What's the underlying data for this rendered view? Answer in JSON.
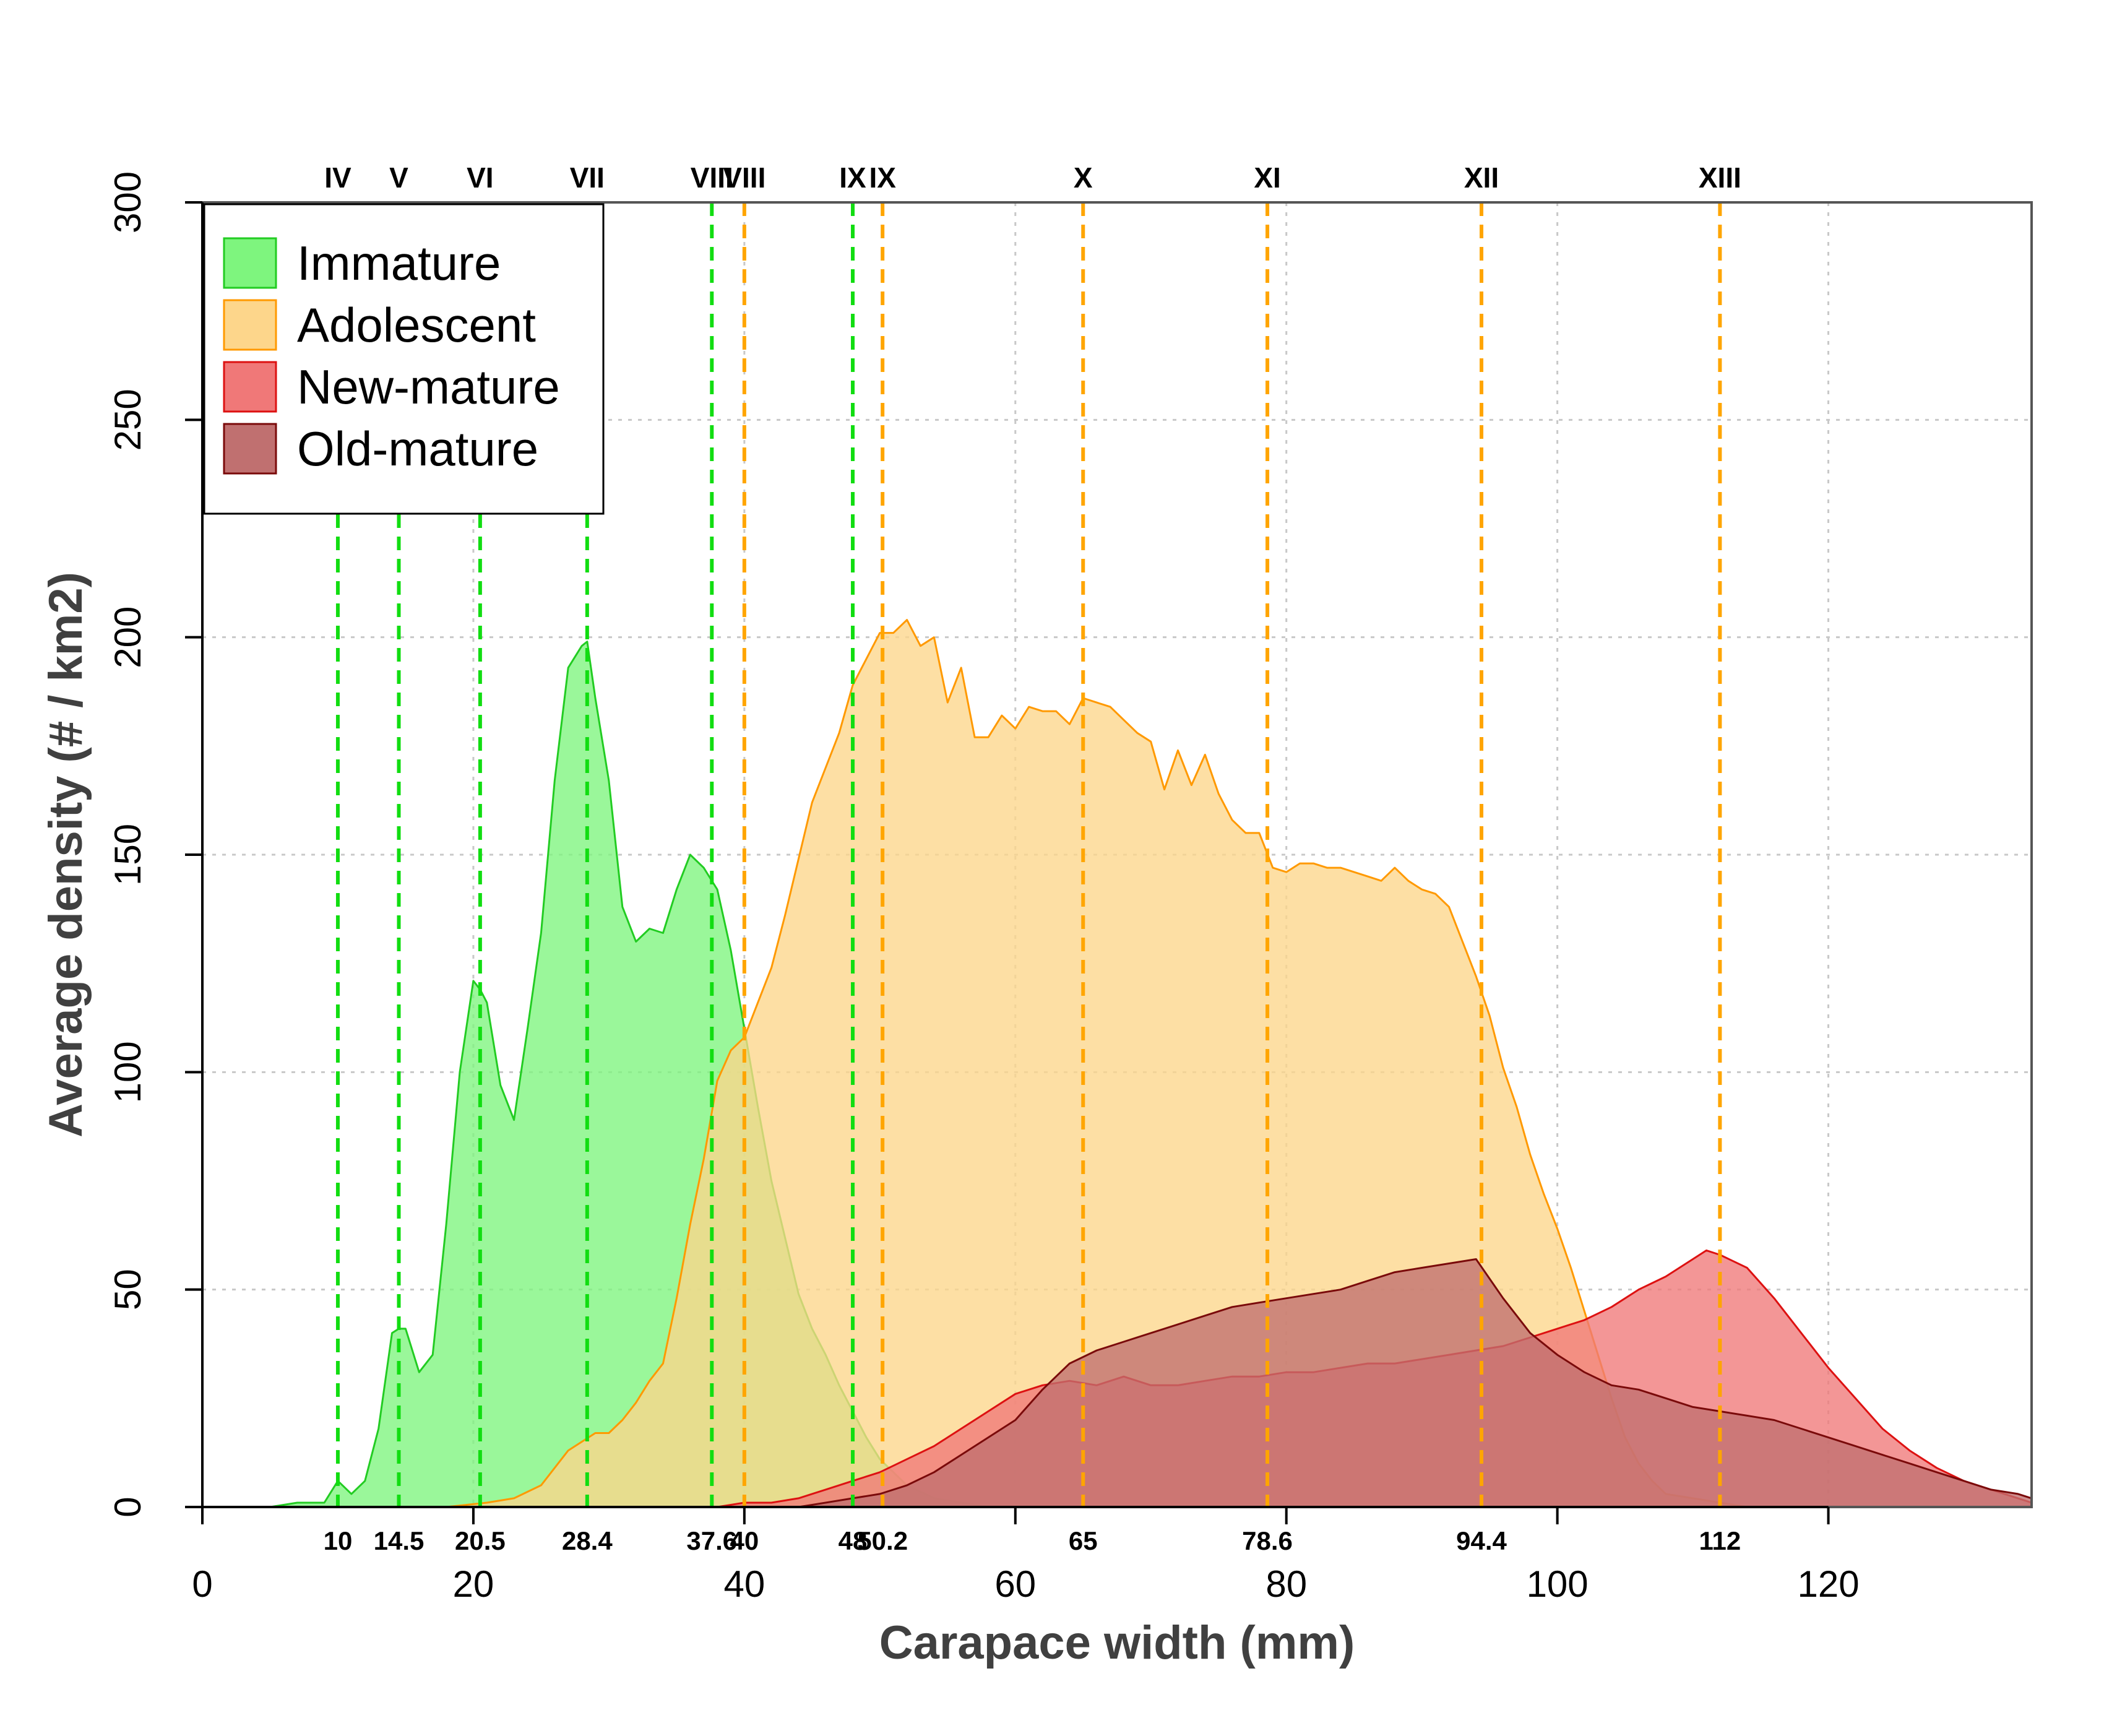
{
  "chart_data": {
    "type": "area",
    "title": "",
    "xlabel": "Carapace width (mm)",
    "ylabel": "Average density (# / km2)",
    "xlim": [
      0,
      135
    ],
    "ylim": [
      0,
      300
    ],
    "x_ticks": [
      0,
      20,
      40,
      60,
      80,
      100,
      120
    ],
    "y_ticks": [
      0,
      50,
      100,
      150,
      200,
      250,
      300
    ],
    "grid": true,
    "legend_position": "top-left",
    "legend": [
      "Immature",
      "Adolescent",
      "New-mature",
      "Old-mature"
    ],
    "instars": [
      {
        "label": "IV",
        "value": 10,
        "value_label": "10",
        "stage": "Immature"
      },
      {
        "label": "V",
        "value": 14.5,
        "value_label": "14.5",
        "stage": "Immature"
      },
      {
        "label": "VI",
        "value": 20.5,
        "value_label": "20.5",
        "stage": "Immature"
      },
      {
        "label": "VII",
        "value": 28.4,
        "value_label": "28.4",
        "stage": "Immature"
      },
      {
        "label": "VIII",
        "value": 37.6,
        "value_label": "37.6",
        "stage": "Immature"
      },
      {
        "label": "VIII",
        "value": 40,
        "value_label": "40",
        "stage": "Adolescent"
      },
      {
        "label": "IX",
        "value": 48,
        "value_label": "48",
        "stage": "Immature"
      },
      {
        "label": "IX",
        "value": 50.2,
        "value_label": "50.2",
        "stage": "Adolescent"
      },
      {
        "label": "X",
        "value": 65,
        "value_label": "65",
        "stage": "Adolescent"
      },
      {
        "label": "XI",
        "value": 78.6,
        "value_label": "78.6",
        "stage": "Adolescent"
      },
      {
        "label": "XII",
        "value": 94.4,
        "value_label": "94.4",
        "stage": "Adolescent"
      },
      {
        "label": "XIII",
        "value": 112,
        "value_label": "112",
        "stage": "Adolescent"
      }
    ],
    "series": [
      {
        "name": "Immature",
        "fill": "#7ef57e",
        "stroke": "#22cc22",
        "x": [
          3,
          5,
          7,
          9,
          10,
          11,
          12,
          13,
          14,
          14.5,
          15,
          16,
          17,
          18,
          19,
          20,
          20.5,
          21,
          22,
          23,
          24,
          25,
          26,
          27,
          28,
          28.4,
          29,
          30,
          31,
          32,
          33,
          34,
          35,
          36,
          37,
          37.6,
          38,
          39,
          40,
          41,
          42,
          43,
          44,
          45,
          46,
          47,
          48,
          49,
          50,
          52,
          54,
          56,
          58
        ],
        "values": [
          0,
          0,
          1,
          1,
          6,
          3,
          6,
          18,
          40,
          41,
          41,
          31,
          35,
          65,
          100,
          121,
          119,
          116,
          97,
          89,
          110,
          132,
          167,
          193,
          198,
          199,
          186,
          167,
          138,
          130,
          133,
          132,
          142,
          150,
          147,
          144,
          142,
          128,
          110,
          92,
          75,
          62,
          49,
          41,
          35,
          28,
          22,
          16,
          11,
          5,
          2,
          1,
          0
        ]
      },
      {
        "name": "Adolescent",
        "fill": "#fdd68b",
        "stroke": "#ff9900",
        "x": [
          18,
          21,
          23,
          25,
          26,
          27,
          28,
          29,
          30,
          31,
          32,
          33,
          34,
          35,
          36,
          37,
          38,
          39,
          40,
          41,
          42,
          43,
          44,
          45,
          46,
          47,
          48,
          49,
          50,
          51,
          52,
          53,
          54,
          55,
          56,
          57,
          58,
          59,
          60,
          61,
          62,
          63,
          64,
          65,
          66,
          67,
          68,
          69,
          70,
          71,
          72,
          73,
          74,
          75,
          76,
          77,
          78,
          79,
          80,
          81,
          82,
          83,
          84,
          85,
          86,
          87,
          88,
          89,
          90,
          91,
          92,
          93,
          94,
          95,
          96,
          97,
          98,
          99,
          100,
          101,
          102,
          103,
          104,
          105,
          106,
          107,
          108,
          110,
          112,
          114,
          116,
          118
        ],
        "values": [
          0,
          1,
          2,
          5,
          9,
          13,
          15,
          17,
          17,
          20,
          24,
          29,
          33,
          48,
          65,
          80,
          98,
          105,
          108,
          116,
          124,
          136,
          149,
          162,
          170,
          178,
          189,
          195,
          201,
          201,
          204,
          198,
          200,
          185,
          193,
          177,
          177,
          182,
          179,
          184,
          183,
          183,
          180,
          186,
          185,
          184,
          181,
          178,
          176,
          165,
          174,
          166,
          173,
          164,
          158,
          155,
          155,
          147,
          146,
          148,
          148,
          147,
          147,
          146,
          145,
          144,
          147,
          144,
          142,
          141,
          138,
          130,
          122,
          113,
          101,
          92,
          81,
          72,
          64,
          55,
          45,
          35,
          25,
          16,
          10,
          6,
          3,
          2,
          1,
          0,
          0,
          0
        ]
      },
      {
        "name": "New-mature",
        "fill": "#f07878",
        "stroke": "#dd1111",
        "x": [
          38,
          40,
          42,
          44,
          46,
          48,
          50,
          52,
          54,
          56,
          58,
          60,
          62,
          64,
          66,
          68,
          70,
          72,
          74,
          76,
          78,
          80,
          82,
          84,
          86,
          88,
          90,
          92,
          94,
          96,
          98,
          100,
          102,
          104,
          106,
          108,
          110,
          111,
          112,
          114,
          116,
          118,
          120,
          122,
          124,
          126,
          128,
          130,
          132,
          134,
          135
        ],
        "values": [
          0,
          1,
          1,
          2,
          4,
          6,
          8,
          11,
          14,
          18,
          22,
          26,
          28,
          29,
          28,
          30,
          28,
          28,
          29,
          30,
          30,
          31,
          31,
          32,
          33,
          33,
          34,
          35,
          36,
          37,
          39,
          41,
          43,
          46,
          50,
          53,
          57,
          59,
          58,
          55,
          48,
          40,
          32,
          25,
          18,
          13,
          9,
          6,
          4,
          2,
          1
        ]
      },
      {
        "name": "Old-mature",
        "fill": "#c07070",
        "stroke": "#7a0a0a",
        "x": [
          44,
          46,
          48,
          50,
          52,
          54,
          56,
          58,
          60,
          62,
          64,
          66,
          68,
          70,
          72,
          74,
          76,
          78,
          80,
          82,
          84,
          86,
          88,
          90,
          92,
          94,
          96,
          98,
          100,
          102,
          104,
          106,
          108,
          110,
          112,
          114,
          116,
          118,
          120,
          122,
          124,
          126,
          128,
          130,
          132,
          134,
          135
        ],
        "values": [
          0,
          1,
          2,
          3,
          5,
          8,
          12,
          16,
          20,
          27,
          33,
          36,
          38,
          40,
          42,
          44,
          46,
          47,
          48,
          49,
          50,
          52,
          54,
          55,
          56,
          57,
          48,
          40,
          35,
          31,
          28,
          27,
          25,
          23,
          22,
          21,
          20,
          18,
          16,
          14,
          12,
          10,
          8,
          6,
          4,
          3,
          2
        ]
      }
    ]
  }
}
